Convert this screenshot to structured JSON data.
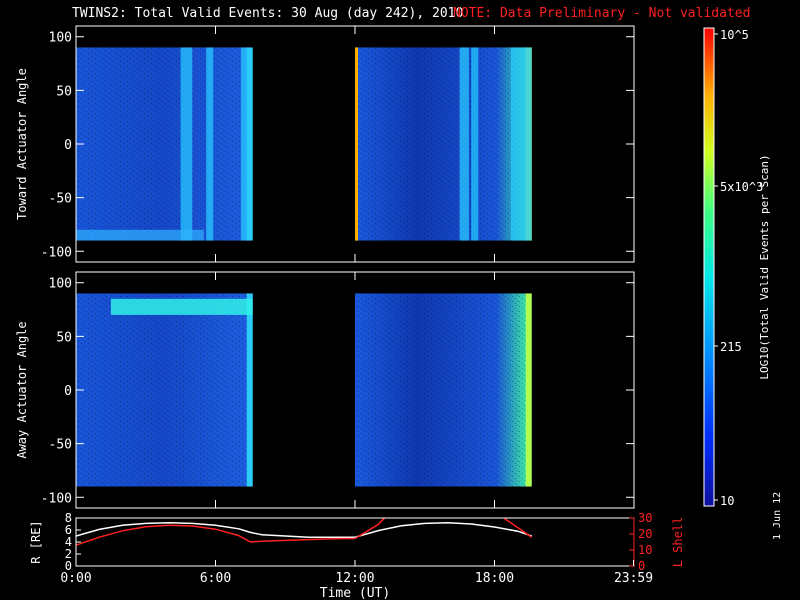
{
  "title": "TWINS2: Total Valid Events: 30 Aug (day 242), 2010",
  "note": "NOTE: Data Preliminary - Not validated",
  "stamp": "1 Jun 12",
  "colors": {
    "background": "#000000",
    "axes": "#ffffff",
    "note": "#ff2020",
    "lshell": "#ff2020",
    "radius": "#ffffff"
  },
  "chart_data": [
    {
      "type": "heatmap",
      "panel": "toward",
      "ylabel": "Toward Actuator Angle",
      "ylim": [
        -110,
        110
      ],
      "yticks": [
        100,
        50,
        0,
        -50,
        -100
      ],
      "xlim": [
        0,
        24
      ],
      "data_extent": {
        "y": [
          -90,
          90
        ]
      },
      "segments": [
        {
          "start": 0.0,
          "end": 7.6
        },
        {
          "start": 12.0,
          "end": 19.6
        }
      ],
      "bright_columns": [
        {
          "t": 4.5,
          "w": 0.5
        },
        {
          "t": 5.6,
          "w": 0.3
        },
        {
          "t": 7.1,
          "w": 0.35
        },
        {
          "t": 16.5,
          "w": 0.4
        },
        {
          "t": 17.0,
          "w": 0.3
        },
        {
          "t": 18.7,
          "w": 0.5
        },
        {
          "t": 19.2,
          "w": 0.4
        }
      ],
      "colorbar": {
        "label": "LOG10(Total Valid Events per Scan)",
        "ticks": [
          "10",
          "215",
          "5x10^3",
          "10^5"
        ],
        "range": [
          10,
          100000
        ],
        "scale": "log"
      }
    },
    {
      "type": "heatmap",
      "panel": "away",
      "ylabel": "Away Actuator Angle",
      "ylim": [
        -110,
        110
      ],
      "yticks": [
        100,
        50,
        0,
        -50,
        -100
      ],
      "xlim": [
        0,
        24
      ],
      "data_extent": {
        "y": [
          -90,
          90
        ]
      },
      "segments": [
        {
          "start": 0.0,
          "end": 7.6
        },
        {
          "start": 12.0,
          "end": 19.6
        }
      ],
      "band": {
        "y": [
          70,
          85
        ],
        "t": [
          1.5,
          7.6
        ]
      }
    },
    {
      "type": "line",
      "panel": "orbit",
      "xlabel": "Time (UT)",
      "xticks": [
        "0:00",
        "6:00",
        "12:00",
        "18:00",
        "23:59"
      ],
      "xlim": [
        0,
        24
      ],
      "left_axis": {
        "label": "R [RE]",
        "ylim": [
          0,
          8
        ],
        "ticks": [
          0,
          2,
          4,
          6,
          8
        ]
      },
      "right_axis": {
        "label": "L Shell",
        "ylim": [
          0,
          30
        ],
        "ticks": [
          0,
          10,
          20,
          30
        ]
      },
      "series": [
        {
          "name": "R [RE]",
          "axis": "left",
          "color": "#ffffff",
          "x": [
            0,
            1,
            2,
            3,
            4,
            5,
            6,
            7,
            7.5,
            8,
            9,
            10,
            11,
            12,
            13,
            14,
            15,
            16,
            17,
            18,
            19,
            19.6
          ],
          "y": [
            5.0,
            6.1,
            6.8,
            7.1,
            7.2,
            7.1,
            6.8,
            6.2,
            5.6,
            5.2,
            5.0,
            4.8,
            4.8,
            4.8,
            5.9,
            6.7,
            7.1,
            7.2,
            7.0,
            6.5,
            5.8,
            5.0
          ]
        },
        {
          "name": "L Shell",
          "axis": "right",
          "color": "#ff2020",
          "x": [
            0,
            1,
            2,
            3,
            4,
            5,
            6,
            7,
            7.5,
            8,
            9,
            10,
            11,
            12,
            13,
            13.4
          ],
          "y": [
            13,
            18,
            22,
            24.5,
            25.5,
            25,
            23,
            19,
            15,
            15.5,
            16,
            16.5,
            17,
            17.2,
            26,
            32
          ]
        },
        {
          "name": "L Shell end",
          "axis": "right",
          "color": "#ff2020",
          "x": [
            18.2,
            18.8,
            19.6
          ],
          "y": [
            32,
            26,
            18
          ]
        }
      ]
    }
  ]
}
